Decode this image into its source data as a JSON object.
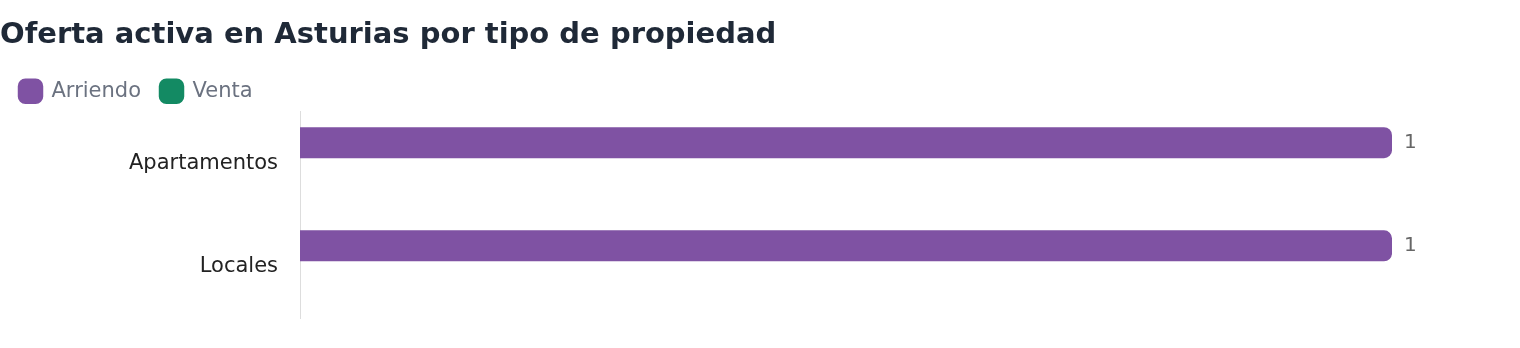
{
  "chart_data": {
    "type": "bar",
    "orientation": "horizontal",
    "title": "Oferta activa en Asturias por tipo de propiedad",
    "categories": [
      "Apartamentos",
      "Locales"
    ],
    "series": [
      {
        "name": "Arriendo",
        "color": "#7f52a3",
        "values": [
          1,
          1
        ]
      },
      {
        "name": "Venta",
        "color": "#138a63",
        "values": [
          null,
          null
        ]
      }
    ],
    "tick_labels": "y",
    "data_labels": true,
    "legend": "top left",
    "grid": false
  }
}
